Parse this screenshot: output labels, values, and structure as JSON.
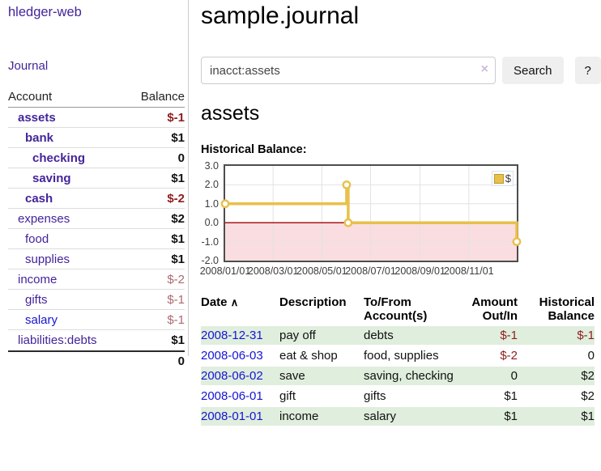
{
  "app": {
    "title": "hledger-web"
  },
  "sidebar": {
    "journal_link": "Journal",
    "table": {
      "account_header": "Account",
      "balance_header": "Balance",
      "rows": [
        {
          "name": "assets",
          "indent": 0,
          "bold": true,
          "blue": false,
          "balance": "$-1",
          "negative": true,
          "muted": false
        },
        {
          "name": "bank",
          "indent": 1,
          "bold": true,
          "blue": false,
          "balance": "$1",
          "negative": false,
          "muted": false
        },
        {
          "name": "checking",
          "indent": 2,
          "bold": true,
          "blue": false,
          "balance": "0",
          "negative": false,
          "muted": false
        },
        {
          "name": "saving",
          "indent": 2,
          "bold": true,
          "blue": false,
          "balance": "$1",
          "negative": false,
          "muted": false
        },
        {
          "name": "cash",
          "indent": 1,
          "bold": true,
          "blue": false,
          "balance": "$-2",
          "negative": true,
          "muted": false
        },
        {
          "name": "expenses",
          "indent": 0,
          "bold": false,
          "blue": false,
          "balance": "$2",
          "negative": false,
          "muted": false
        },
        {
          "name": "food",
          "indent": 1,
          "bold": false,
          "blue": false,
          "balance": "$1",
          "negative": false,
          "muted": false
        },
        {
          "name": "supplies",
          "indent": 1,
          "bold": false,
          "blue": false,
          "balance": "$1",
          "negative": false,
          "muted": false
        },
        {
          "name": "income",
          "indent": 0,
          "bold": false,
          "blue": false,
          "balance": "$-2",
          "negative": true,
          "muted": true
        },
        {
          "name": "gifts",
          "indent": 1,
          "bold": false,
          "blue": false,
          "balance": "$-1",
          "negative": true,
          "muted": true
        },
        {
          "name": "salary",
          "indent": 1,
          "bold": false,
          "blue": true,
          "balance": "$-1",
          "negative": true,
          "muted": true
        },
        {
          "name": "liabilities:debts",
          "indent": 0,
          "bold": false,
          "blue": false,
          "balance": "$1",
          "negative": false,
          "muted": false
        }
      ],
      "total": "0"
    }
  },
  "main": {
    "title": "sample.journal",
    "search": {
      "value": "inacct:assets",
      "clear_icon": "×",
      "button": "Search",
      "help_button": "?"
    },
    "account_heading": "assets",
    "chart_label": "Historical Balance:"
  },
  "chart_data": {
    "type": "line",
    "title": "Historical Balance",
    "step": true,
    "series": [
      {
        "name": "$",
        "points": [
          {
            "date": "2008-01-01",
            "value": 1
          },
          {
            "date": "2008-06-01",
            "value": 2
          },
          {
            "date": "2008-06-03",
            "value": 0
          },
          {
            "date": "2008-12-31",
            "value": -1
          }
        ]
      }
    ],
    "ylim": [
      -2,
      3
    ],
    "x_range": [
      "2008-01-01",
      "2008-12-31"
    ],
    "y_ticks": [
      "3.0",
      "2.0",
      "1.0",
      "0.0",
      "-1.0",
      "-2.0"
    ],
    "x_ticks": [
      "2008/01/01",
      "2008/03/01",
      "2008/05/01",
      "2008/07/01",
      "2008/09/01",
      "2008/11/01"
    ],
    "legend_position": "top-right",
    "grid": true,
    "colors": {
      "line": "#e9c04a",
      "marker_fill": "#ffffff",
      "negative_fill": "#fadde0",
      "zero_line": "#a40000",
      "grid": "#e2e2e2",
      "border": "#4d4d4d"
    }
  },
  "transactions": {
    "headers": {
      "date": "Date",
      "sort_icon": "∧",
      "description": "Description",
      "accounts": "To/From Account(s)",
      "amount": "Amount Out/In",
      "balance": "Historical Balance"
    },
    "rows": [
      {
        "date": "2008-12-31",
        "description": "pay off",
        "accounts": "debts",
        "amount": "$-1",
        "amount_negative": true,
        "balance": "$-1",
        "balance_negative": true,
        "shaded": true
      },
      {
        "date": "2008-06-03",
        "description": "eat & shop",
        "accounts": "food, supplies",
        "amount": "$-2",
        "amount_negative": true,
        "balance": "0",
        "balance_negative": false,
        "shaded": false
      },
      {
        "date": "2008-06-02",
        "description": "save",
        "accounts": "saving, checking",
        "amount": "0",
        "amount_negative": false,
        "balance": "$2",
        "balance_negative": false,
        "shaded": true
      },
      {
        "date": "2008-06-01",
        "description": "gift",
        "accounts": "gifts",
        "amount": "$1",
        "amount_negative": false,
        "balance": "$2",
        "balance_negative": false,
        "shaded": false
      },
      {
        "date": "2008-01-01",
        "description": "income",
        "accounts": "salary",
        "amount": "$1",
        "amount_negative": false,
        "balance": "$1",
        "balance_negative": false,
        "shaded": true
      }
    ]
  }
}
